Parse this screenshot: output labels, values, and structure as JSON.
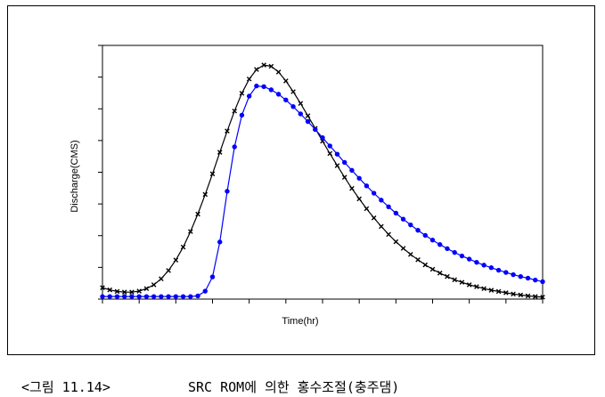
{
  "chart_data": {
    "type": "line",
    "xlabel": "Time(hr)",
    "ylabel": "Discharge(CMS)",
    "xlim": [
      0,
      60
    ],
    "ylim": [
      0,
      8
    ],
    "x_tick_labels": [],
    "y_tick_labels": [],
    "grid": false,
    "legend": "none",
    "series": [
      {
        "color": "#000000",
        "marker": "x",
        "values": [
          0.36,
          0.29,
          0.24,
          0.22,
          0.22,
          0.25,
          0.33,
          0.45,
          0.64,
          0.9,
          1.23,
          1.64,
          2.13,
          2.68,
          3.3,
          3.95,
          4.63,
          5.3,
          5.93,
          6.49,
          6.94,
          7.24,
          7.38,
          7.34,
          7.16,
          6.88,
          6.54,
          6.17,
          5.78,
          5.38,
          4.98,
          4.59,
          4.21,
          3.84,
          3.49,
          3.16,
          2.85,
          2.56,
          2.29,
          2.04,
          1.81,
          1.6,
          1.41,
          1.24,
          1.08,
          0.94,
          0.82,
          0.71,
          0.61,
          0.53,
          0.45,
          0.39,
          0.33,
          0.28,
          0.24,
          0.2,
          0.16,
          0.13,
          0.1,
          0.08,
          0.06
        ]
      },
      {
        "color": "#0000ff",
        "marker": "o",
        "values": [
          0.08,
          0.08,
          0.08,
          0.08,
          0.08,
          0.08,
          0.08,
          0.08,
          0.08,
          0.08,
          0.08,
          0.08,
          0.08,
          0.1,
          0.25,
          0.7,
          1.8,
          3.4,
          4.8,
          5.8,
          6.4,
          6.72,
          6.7,
          6.6,
          6.46,
          6.28,
          6.07,
          5.84,
          5.6,
          5.35,
          5.09,
          4.83,
          4.57,
          4.31,
          4.06,
          3.81,
          3.57,
          3.34,
          3.12,
          2.91,
          2.71,
          2.52,
          2.34,
          2.17,
          2.01,
          1.86,
          1.72,
          1.59,
          1.47,
          1.36,
          1.26,
          1.16,
          1.07,
          0.99,
          0.91,
          0.84,
          0.77,
          0.71,
          0.66,
          0.6,
          0.55
        ]
      }
    ]
  },
  "caption": {
    "number": "<그림 11.14>",
    "title": "SRC ROM에 의한 홍수조절(충주댐)"
  }
}
